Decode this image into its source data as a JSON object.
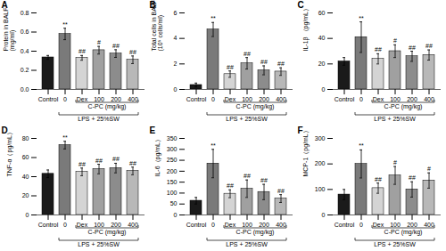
{
  "chart_data": [
    {
      "type": "bar",
      "title": "A",
      "ylabel": "Protein in BALF\n(mg/ml)",
      "categories": [
        "Control",
        "0",
        "Dex",
        "100",
        "200",
        "400"
      ],
      "values": [
        0.335,
        0.58,
        0.33,
        0.41,
        0.375,
        0.31
      ],
      "errors": [
        0.02,
        0.06,
        0.025,
        0.04,
        0.04,
        0.04
      ],
      "annotations": [
        null,
        "**",
        "##",
        "#",
        "##",
        "##"
      ],
      "colors": [
        "#1a1a1a",
        "#7a7a7a",
        "#d4d4d4",
        "#a0a0a0",
        "#8c8c8c",
        "#b8b8b8"
      ],
      "ylim": [
        0,
        0.8
      ],
      "yticks": [
        {
          "value": 0,
          "label": "0.0"
        },
        0.2,
        0.4,
        0.6,
        0.8
      ],
      "brackets": [
        {
          "label": "C-PC (mg/kg)",
          "from": "Dex",
          "to": "400"
        },
        {
          "label": "LPS + 25%SW",
          "from": "0",
          "to": "400"
        }
      ]
    },
    {
      "type": "bar",
      "title": "B",
      "ylabel": "Total cells in BALF\n(10⁵ cells/ml)",
      "categories": [
        "Control",
        "0",
        "Dex",
        "100",
        "200",
        "400"
      ],
      "values": [
        0.35,
        4.7,
        1.2,
        2.05,
        1.5,
        1.4
      ],
      "errors": [
        0.15,
        0.55,
        0.25,
        0.45,
        0.35,
        0.3
      ],
      "annotations": [
        null,
        "**",
        "##",
        "##",
        "##",
        "##"
      ],
      "colors": [
        "#1a1a1a",
        "#7a7a7a",
        "#d4d4d4",
        "#a0a0a0",
        "#8c8c8c",
        "#b8b8b8"
      ],
      "ylim": [
        0,
        6
      ],
      "yticks": [
        0,
        2,
        4,
        6
      ],
      "brackets": [
        {
          "label": "C-PC (mg/kg)",
          "from": "Dex",
          "to": "400"
        },
        {
          "label": "LPS + 25%SW",
          "from": "0",
          "to": "400"
        }
      ]
    },
    {
      "type": "bar",
      "title": "C",
      "ylabel": "IL-1β （pg/mL）",
      "categories": [
        "Control",
        "0",
        "Dex",
        "100",
        "200",
        "400"
      ],
      "values": [
        22,
        41,
        24,
        30,
        26,
        27
      ],
      "errors": [
        3,
        12,
        4,
        5,
        4,
        4
      ],
      "annotations": [
        null,
        "**",
        "##",
        "#",
        "##",
        "##"
      ],
      "colors": [
        "#1a1a1a",
        "#7a7a7a",
        "#d4d4d4",
        "#a0a0a0",
        "#8c8c8c",
        "#b8b8b8"
      ],
      "ylim": [
        0,
        60
      ],
      "yticks": [
        0,
        20,
        40,
        60
      ],
      "brackets": [
        {
          "label": "C-PC (mg/kg)",
          "from": "Dex",
          "to": "400"
        },
        {
          "label": "LPS + 25%SW",
          "from": "0",
          "to": "400"
        }
      ]
    },
    {
      "type": "bar",
      "title": "D",
      "ylabel": "TNF-α（pg/mL）",
      "categories": [
        "Control",
        "0",
        "Dex",
        "100",
        "200",
        "400"
      ],
      "values": [
        43,
        73,
        45,
        48,
        49,
        46
      ],
      "errors": [
        4,
        4,
        4,
        5,
        5,
        4
      ],
      "annotations": [
        null,
        "**",
        "##",
        "##",
        "##",
        "##"
      ],
      "colors": [
        "#1a1a1a",
        "#7a7a7a",
        "#d4d4d4",
        "#a0a0a0",
        "#8c8c8c",
        "#b8b8b8"
      ],
      "ylim": [
        0,
        80
      ],
      "yticks": [
        0,
        20,
        40,
        60,
        80
      ],
      "brackets": [
        {
          "label": "C-PC (mg/kg)",
          "from": "Dex",
          "to": "400"
        },
        {
          "label": "LPS + 25%SW",
          "from": "0",
          "to": "400"
        }
      ]
    },
    {
      "type": "bar",
      "title": "E",
      "ylabel": "IL-6（pg/mL）",
      "categories": [
        "Control",
        "0",
        "Dex",
        "100",
        "200",
        "400"
      ],
      "values": [
        65,
        235,
        97,
        120,
        105,
        75
      ],
      "errors": [
        15,
        65,
        18,
        40,
        35,
        18
      ],
      "annotations": [
        null,
        "**",
        "##",
        "##",
        "##",
        "##"
      ],
      "colors": [
        "#1a1a1a",
        "#7a7a7a",
        "#d4d4d4",
        "#a0a0a0",
        "#8c8c8c",
        "#b8b8b8"
      ],
      "ylim": [
        0,
        350
      ],
      "yticks": [
        0,
        50,
        100,
        150,
        200,
        250,
        300,
        350
      ],
      "brackets": [
        {
          "label": "C-PC (mg/kg)",
          "from": "Dex",
          "to": "400"
        },
        {
          "label": "LPS + 25%SW",
          "from": "0",
          "to": "400"
        }
      ]
    },
    {
      "type": "bar",
      "title": "F",
      "ylabel": "MCP-1（pg/mL）",
      "categories": [
        "Control",
        "0",
        "Dex",
        "100",
        "200",
        "400"
      ],
      "values": [
        80,
        200,
        105,
        155,
        100,
        135
      ],
      "errors": [
        20,
        55,
        20,
        35,
        30,
        30
      ],
      "annotations": [
        null,
        "**",
        "##",
        "#",
        "##",
        "#"
      ],
      "colors": [
        "#1a1a1a",
        "#7a7a7a",
        "#d4d4d4",
        "#a0a0a0",
        "#8c8c8c",
        "#b8b8b8"
      ],
      "ylim": [
        0,
        300
      ],
      "yticks": [
        0,
        100,
        200,
        300
      ],
      "brackets": [
        {
          "label": "C-PC (mg/kg)",
          "from": "Dex",
          "to": "400"
        },
        {
          "label": "LPS + 25%SW",
          "from": "0",
          "to": "400"
        }
      ]
    }
  ]
}
